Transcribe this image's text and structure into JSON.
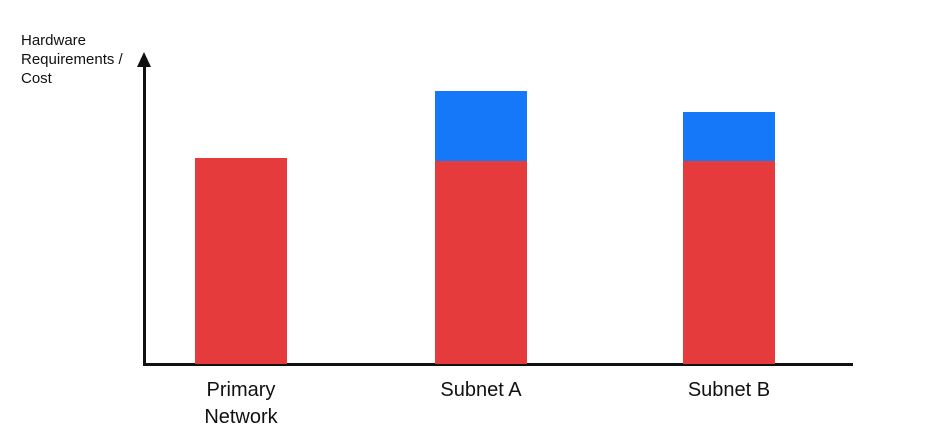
{
  "labels": {
    "y_axis": "Hardware\nRequirements /\nCost"
  },
  "chart_data": {
    "type": "bar",
    "subtype": "stacked",
    "title": "",
    "xlabel": "",
    "ylabel": "Hardware Requirements / Cost",
    "categories": [
      "Primary\nNetwork",
      "Subnet A",
      "Subnet B"
    ],
    "series": [
      {
        "name": "red-segment",
        "color": "#E53B3D",
        "values": [
          67,
          66,
          66
        ]
      },
      {
        "name": "blue-segment",
        "color": "#1478F8",
        "values": [
          0,
          23,
          16
        ]
      }
    ],
    "ylim": [
      0,
      100
    ],
    "grid": false,
    "legend": false,
    "axis_color": "#111111",
    "axis_arrows": "y-axis-only",
    "note": "no numeric tick labels shown; values are relative heights (percent of axis height)"
  }
}
